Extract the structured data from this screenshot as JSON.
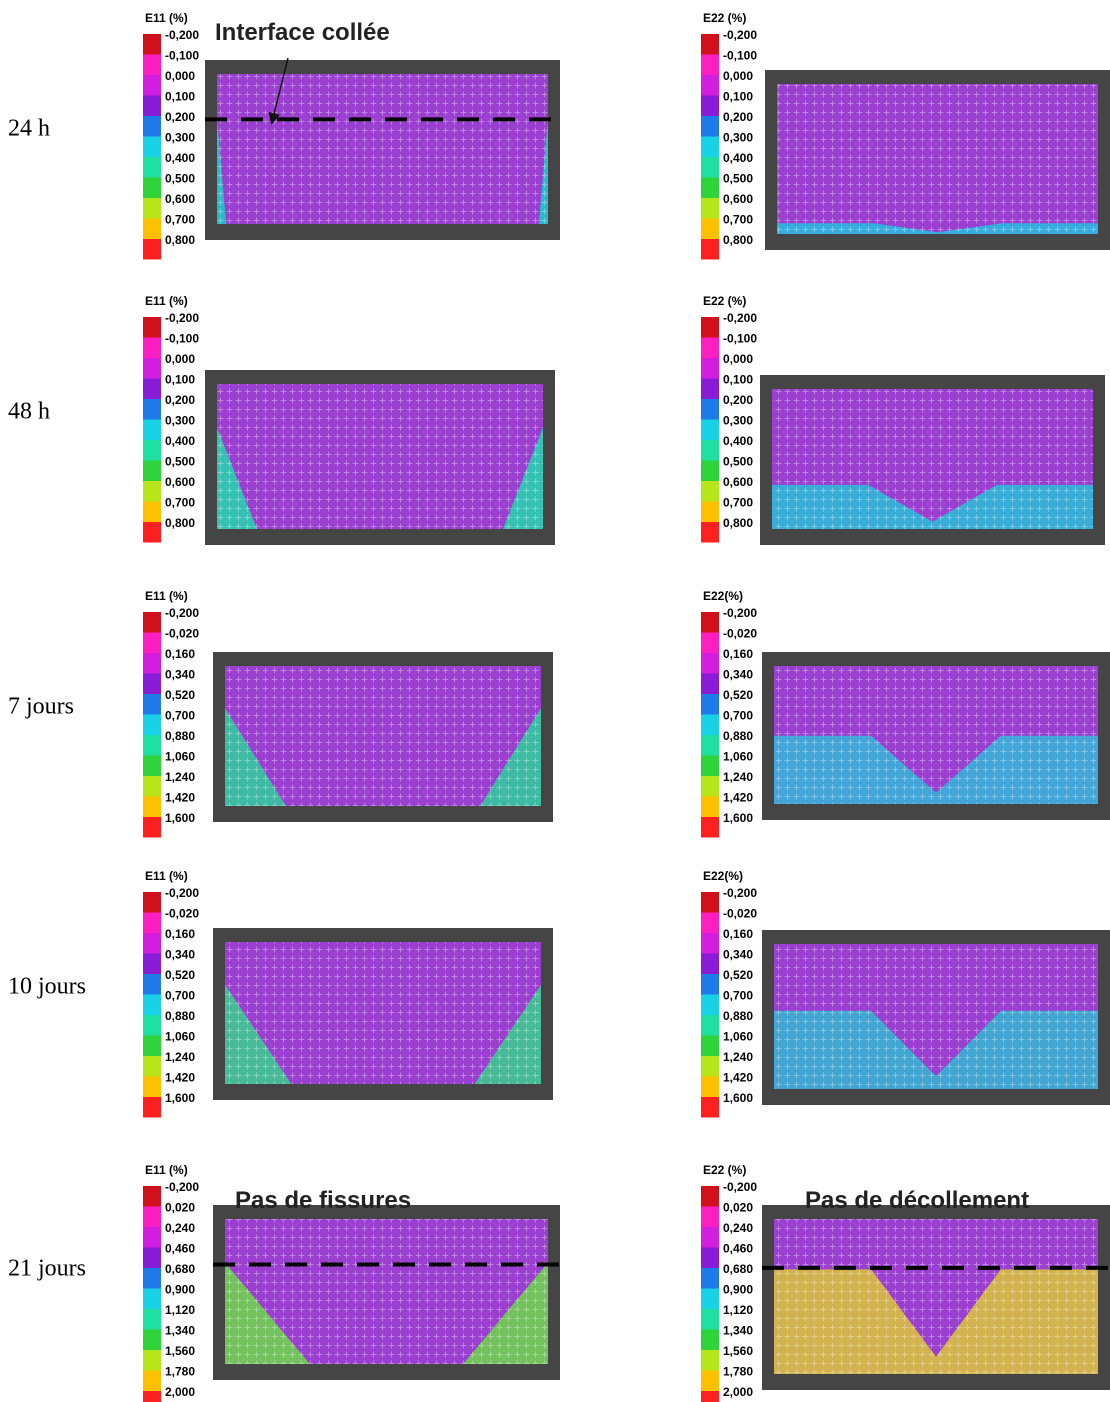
{
  "rows": [
    {
      "label": "24 h",
      "panels": [
        {
          "legend_title": "E11 (%)",
          "annotation": "Interface collée",
          "ticks": [
            "-0,200",
            "-0,100",
            "0,000",
            "0,100",
            "0,200",
            "0,300",
            "0,400",
            "0,500",
            "0,600",
            "0,700",
            "0,800"
          ]
        },
        {
          "legend_title": "E22 (%)",
          "ticks": [
            "-0,200",
            "-0,100",
            "0,000",
            "0,100",
            "0,200",
            "0,300",
            "0,400",
            "0,500",
            "0,600",
            "0,700",
            "0,800"
          ]
        }
      ]
    },
    {
      "label": "48 h",
      "panels": [
        {
          "legend_title": "E11 (%)",
          "ticks": [
            "-0,200",
            "-0,100",
            "0,000",
            "0,100",
            "0,200",
            "0,300",
            "0,400",
            "0,500",
            "0,600",
            "0,700",
            "0,800"
          ]
        },
        {
          "legend_title": "E22 (%)",
          "ticks": [
            "-0,200",
            "-0,100",
            "0,000",
            "0,100",
            "0,200",
            "0,300",
            "0,400",
            "0,500",
            "0,600",
            "0,700",
            "0,800"
          ]
        }
      ]
    },
    {
      "label": "7 jours",
      "panels": [
        {
          "legend_title": "E11 (%)",
          "ticks": [
            "-0,200",
            "-0,020",
            "0,160",
            "0,340",
            "0,520",
            "0,700",
            "0,880",
            "1,060",
            "1,240",
            "1,420",
            "1,600"
          ]
        },
        {
          "legend_title": "E22(%)",
          "ticks": [
            "-0,200",
            "-0,020",
            "0,160",
            "0,340",
            "0,520",
            "0,700",
            "0,880",
            "1,060",
            "1,240",
            "1,420",
            "1,600"
          ]
        }
      ]
    },
    {
      "label": "10 jours",
      "panels": [
        {
          "legend_title": "E11 (%)",
          "ticks": [
            "-0,200",
            "-0,020",
            "0,160",
            "0,340",
            "0,520",
            "0,700",
            "0,880",
            "1,060",
            "1,240",
            "1,420",
            "1,600"
          ]
        },
        {
          "legend_title": "E22(%)",
          "ticks": [
            "-0,200",
            "-0,020",
            "0,160",
            "0,340",
            "0,520",
            "0,700",
            "0,880",
            "1,060",
            "1,240",
            "1,420",
            "1,600"
          ]
        }
      ]
    },
    {
      "label": "21 jours",
      "panels": [
        {
          "legend_title": "E11 (%)",
          "annotation": "Pas de fissures",
          "ticks": [
            "-0,200",
            "0,020",
            "0,240",
            "0,460",
            "0,680",
            "0,900",
            "1,120",
            "1,340",
            "1,560",
            "1,780",
            "2,000"
          ]
        },
        {
          "legend_title": "E22 (%)",
          "annotation": "Pas de décollement",
          "ticks": [
            "-0,200",
            "0,020",
            "0,240",
            "0,460",
            "0,680",
            "0,900",
            "1,120",
            "1,340",
            "1,560",
            "1,780",
            "2,000"
          ]
        }
      ]
    }
  ]
}
